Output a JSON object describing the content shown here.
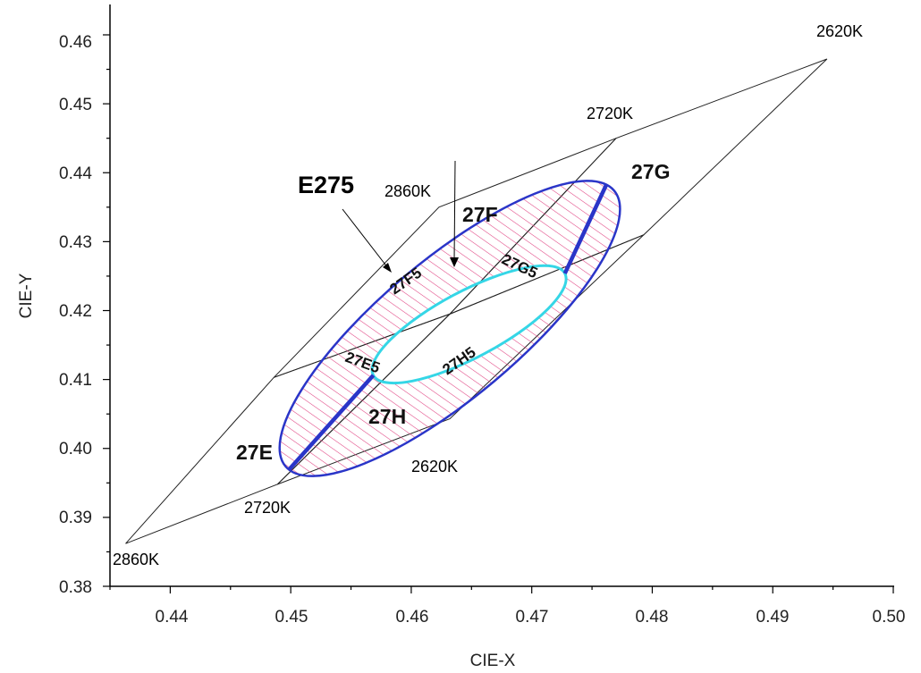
{
  "chart_data": {
    "type": "scatter",
    "xlabel": "CIE-X",
    "ylabel": "CIE-Y",
    "xlim": [
      0.435,
      0.5
    ],
    "ylim": [
      0.38,
      0.4635
    ],
    "x_ticks": [
      "0.44",
      "0.45",
      "0.46",
      "0.47",
      "0.48",
      "0.49",
      "0.50"
    ],
    "y_ticks": [
      "0.38",
      "0.39",
      "0.40",
      "0.41",
      "0.42",
      "0.43",
      "0.44",
      "0.45",
      "0.46"
    ],
    "grid": false,
    "points": {
      "A": [
        0.4363,
        0.3862
      ],
      "B": [
        0.4489,
        0.3948
      ],
      "C": [
        0.4632,
        0.4043
      ],
      "D": [
        0.4793,
        0.431
      ],
      "E": [
        0.4945,
        0.4565
      ],
      "F": [
        0.477,
        0.445
      ],
      "G": [
        0.4623,
        0.435
      ],
      "H": [
        0.4486,
        0.4103
      ],
      "M1": [
        0.4632,
        0.4195
      ],
      "M2": [
        0.4567,
        0.4085
      ],
      "M3": [
        0.4686,
        0.43
      ]
    },
    "bins": [
      {
        "name": "27E",
        "vertices": [
          "A",
          "B",
          "M1",
          "H"
        ]
      },
      {
        "name": "27F",
        "vertices": [
          "H",
          "M1",
          "F",
          "G"
        ]
      },
      {
        "name": "27G",
        "vertices": [
          "M1",
          "D",
          "E",
          "F"
        ]
      },
      {
        "name": "27H",
        "vertices": [
          "B",
          "C",
          "D",
          "M1"
        ]
      }
    ],
    "ellipse_outer": {
      "center": [
        0.4632,
        0.4174
      ],
      "rx": 0.0178,
      "ry": 0.01,
      "rotation_deg": 40,
      "color": "#2a35c8"
    },
    "ellipse_inner": {
      "center": [
        0.4648,
        0.418
      ],
      "rx": 0.009,
      "ry": 0.0048,
      "rotation_deg": 28,
      "color": "#35d6e6"
    },
    "hatch_color": "#e04080",
    "ellipse_label": "E275",
    "sub_bins": [
      "27F5",
      "27G5",
      "27E5",
      "27H5"
    ],
    "cct_labels": [
      "2620K",
      "2720K",
      "2860K",
      "2620K",
      "2720K",
      "2860K"
    ],
    "bin_labels": [
      "27E",
      "27F",
      "27G",
      "27H"
    ]
  }
}
